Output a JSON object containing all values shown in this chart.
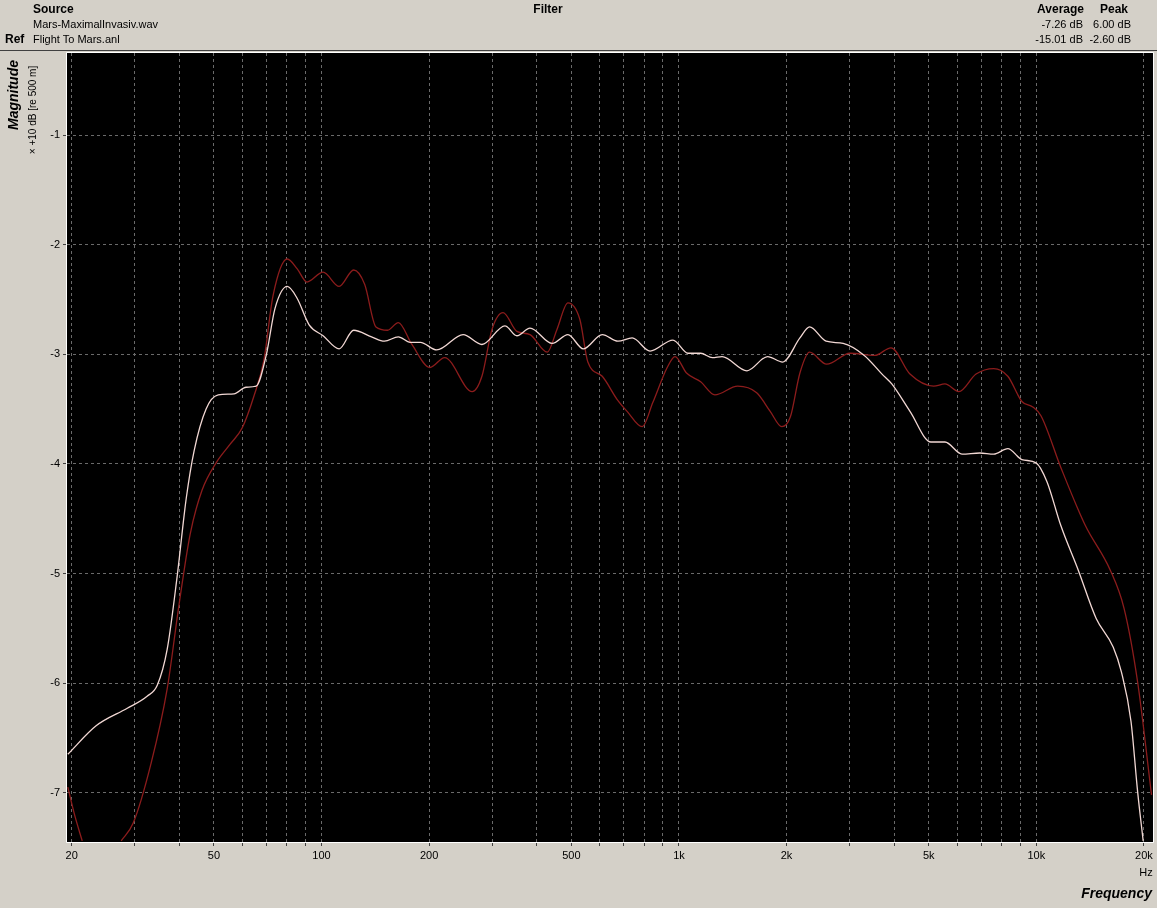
{
  "chart_data": {
    "type": "line",
    "xlabel": "Frequency",
    "ylabel": "Magnitude",
    "log": "x",
    "grid": true,
    "legend": false,
    "xlim": [
      19.4,
      21200
    ],
    "ylim": [
      -7.45,
      -0.25
    ],
    "xticks": [
      20,
      {
        "value": 30,
        "label": null
      },
      {
        "value": 40,
        "label": null
      },
      50,
      {
        "value": 60,
        "label": null
      },
      {
        "value": 70,
        "label": null
      },
      {
        "value": 80,
        "label": null
      },
      {
        "value": 90,
        "label": null
      },
      100,
      200,
      {
        "value": 300,
        "label": null
      },
      {
        "value": 400,
        "label": null
      },
      500,
      {
        "value": 600,
        "label": null
      },
      {
        "value": 700,
        "label": null
      },
      {
        "value": 800,
        "label": null
      },
      {
        "value": 900,
        "label": null
      },
      {
        "value": 1000,
        "label": "1k"
      },
      {
        "value": 2000,
        "label": "2k"
      },
      {
        "value": 3000,
        "label": null
      },
      {
        "value": 4000,
        "label": null
      },
      {
        "value": 5000,
        "label": "5k"
      },
      {
        "value": 6000,
        "label": null
      },
      {
        "value": 7000,
        "label": null
      },
      {
        "value": 8000,
        "label": null
      },
      {
        "value": 9000,
        "label": null
      },
      {
        "value": 10000,
        "label": "10k"
      },
      {
        "value": 20000,
        "label": "20k"
      }
    ],
    "yticks": [
      -7,
      -6,
      -5,
      -4,
      -3,
      -2,
      -1
    ],
    "annotations": [
      "Source",
      "Filter",
      "Average",
      "Peak",
      "Mars-MaximalInvasiv.wav",
      "-7.26 dB",
      "6.00 dB",
      "Ref",
      "Flight To Mars.anl",
      "-15.01 dB",
      "-2.60 dB",
      "× +10 dB [re 500 m]",
      "Hz"
    ],
    "series": [
      {
        "color": "#f2d8d4",
        "x": [
          19.5,
          23.4,
          28.6,
          32.5,
          34.7,
          37.0,
          39.4,
          41.8,
          44.0,
          47.5,
          51.4,
          56.9,
          61.5,
          65.6,
          70.0,
          74.1,
          80.2,
          85.5,
          92.3,
          101,
          112,
          123,
          138,
          150,
          164,
          177,
          189,
          210,
          249,
          281,
          326,
          352,
          383,
          442,
          489,
          540,
          610,
          675,
          740,
          830,
          962,
          1060,
          1150,
          1240,
          1320,
          1550,
          1770,
          1950,
          2180,
          2320,
          2580,
          2880,
          3300,
          3700,
          3940,
          4430,
          5070,
          5550,
          6190,
          6950,
          7600,
          8320,
          9110,
          9980,
          10700,
          11700,
          13100,
          14700,
          16400,
          17300,
          18400,
          19200,
          19900
        ],
        "values": [
          -6.65,
          -6.39,
          -6.23,
          -6.12,
          -6.02,
          -5.69,
          -5.04,
          -4.32,
          -3.88,
          -3.5,
          -3.37,
          -3.36,
          -3.3,
          -3.29,
          -3.01,
          -2.58,
          -2.38,
          -2.49,
          -2.73,
          -2.83,
          -2.95,
          -2.78,
          -2.84,
          -2.88,
          -2.84,
          -2.89,
          -2.89,
          -2.96,
          -2.82,
          -2.91,
          -2.74,
          -2.83,
          -2.76,
          -2.9,
          -2.82,
          -2.95,
          -2.82,
          -2.88,
          -2.85,
          -2.97,
          -2.87,
          -2.99,
          -2.99,
          -3.03,
          -3.02,
          -3.15,
          -3.02,
          -3.07,
          -2.85,
          -2.75,
          -2.88,
          -2.9,
          -3.01,
          -3.18,
          -3.27,
          -3.52,
          -3.8,
          -3.8,
          -3.91,
          -3.9,
          -3.91,
          -3.86,
          -3.96,
          -3.99,
          -4.16,
          -4.56,
          -4.97,
          -5.41,
          -5.67,
          -5.9,
          -6.35,
          -6.99,
          -7.44
        ]
      },
      {
        "color": "#8c1c1c",
        "x": [
          19.5,
          20.4,
          21.4,
          24,
          27.5,
          29.7,
          33.3,
          37.0,
          39.9,
          42.9,
          46.3,
          50.7,
          55.5,
          60.0,
          64.7,
          69.0,
          73.1,
          80.2,
          85.5,
          91.0,
          101,
          112,
          123,
          132,
          142,
          153,
          164,
          179,
          201,
          221,
          264,
          281,
          300,
          322,
          352,
          383,
          428,
          456,
          489,
          528,
          556,
          610,
          671,
          716,
          789,
          845,
          927,
          975,
          1050,
          1150,
          1260,
          1460,
          1650,
          1800,
          1940,
          2050,
          2180,
          2320,
          2590,
          3010,
          3530,
          3920,
          4430,
          5160,
          5550,
          6070,
          6780,
          7600,
          8320,
          9110,
          9770,
          10300,
          11700,
          13700,
          16100,
          17600,
          19200,
          21000
        ],
        "values": [
          -6.95,
          -7.21,
          -7.44,
          null,
          -7.44,
          -7.28,
          -6.74,
          -6.05,
          -5.29,
          -4.64,
          -4.24,
          -3.99,
          -3.82,
          -3.67,
          -3.38,
          -3.05,
          -2.47,
          -2.13,
          -2.22,
          -2.34,
          -2.25,
          -2.38,
          -2.23,
          -2.36,
          -2.75,
          -2.78,
          -2.71,
          -2.91,
          -3.12,
          -3.03,
          -3.34,
          -3.2,
          -2.77,
          -2.62,
          -2.79,
          -2.82,
          -2.98,
          -2.77,
          -2.53,
          -2.68,
          -3.07,
          -3.2,
          -3.41,
          -3.52,
          -3.66,
          -3.44,
          -3.12,
          -3.02,
          -3.17,
          -3.25,
          -3.37,
          -3.29,
          -3.35,
          -3.52,
          -3.66,
          -3.57,
          -3.17,
          -2.98,
          -3.09,
          -2.99,
          -3.01,
          -2.94,
          -3.18,
          -3.29,
          -3.27,
          -3.34,
          -3.18,
          -3.13,
          -3.2,
          -3.43,
          -3.48,
          -3.56,
          -4.03,
          -4.56,
          -4.97,
          -5.32,
          -5.99,
          -7.02
        ]
      }
    ]
  }
}
